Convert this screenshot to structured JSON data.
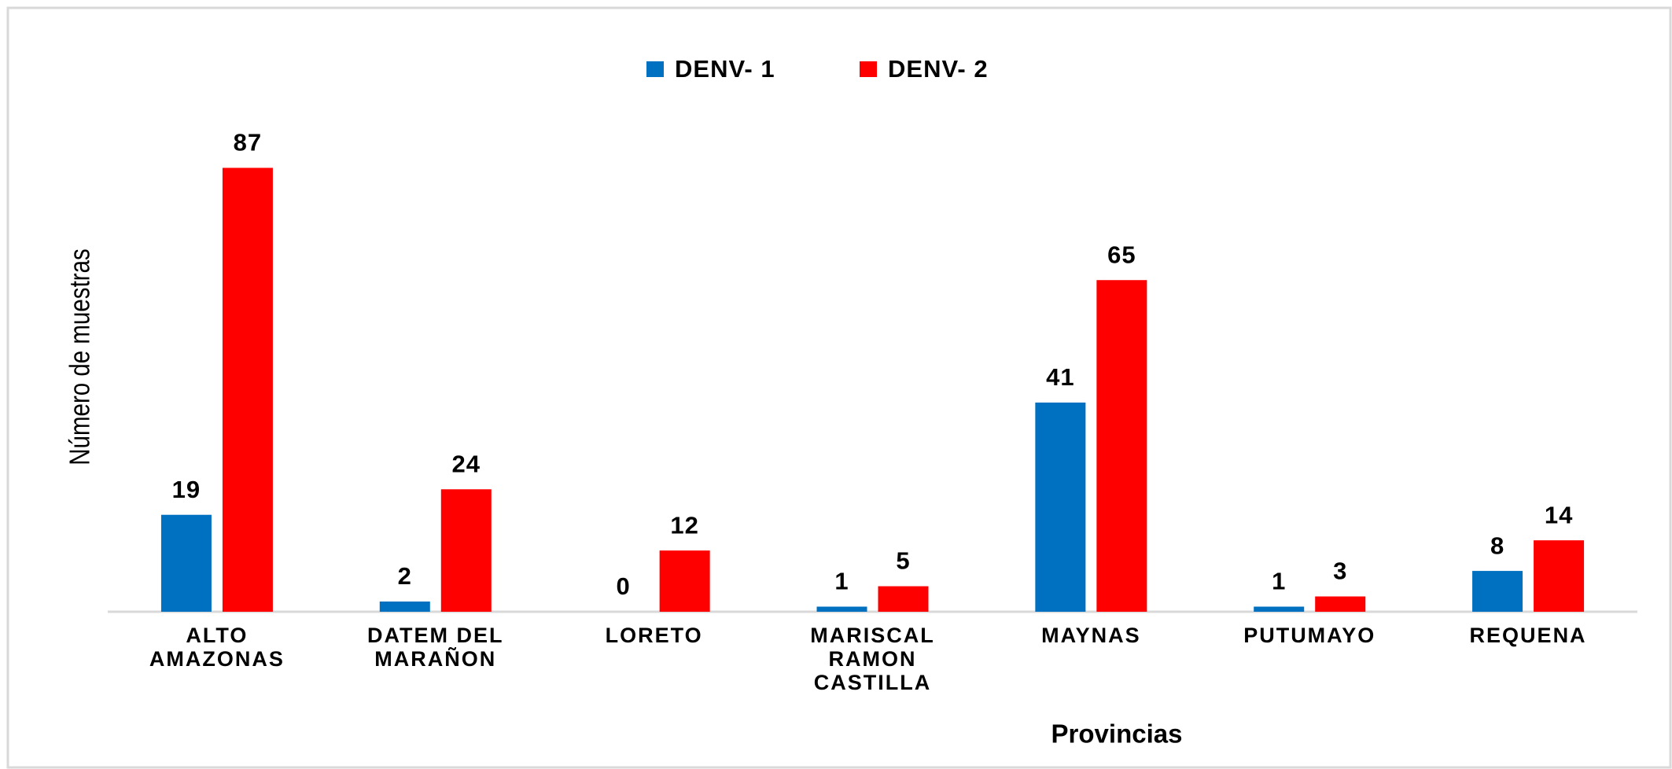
{
  "chart_data": {
    "type": "bar",
    "x_label": "Provincias",
    "y_label": "Número de muestras",
    "categories": [
      "ALTO AMAZONAS",
      "DATEM DEL MARAÑON",
      "LORETO",
      "MARISCAL RAMON CASTILLA",
      "MAYNAS",
      "PUTUMAYO",
      "REQUENA"
    ],
    "series": [
      {
        "name": "DENV- 1",
        "color": "#0070c0",
        "values": [
          19,
          2,
          0,
          1,
          41,
          1,
          8
        ]
      },
      {
        "name": "DENV- 2",
        "color": "#ff0000",
        "values": [
          87,
          24,
          12,
          5,
          65,
          3,
          14
        ]
      }
    ],
    "ylim": [
      0,
      90
    ],
    "legend": "top",
    "grid": false
  }
}
